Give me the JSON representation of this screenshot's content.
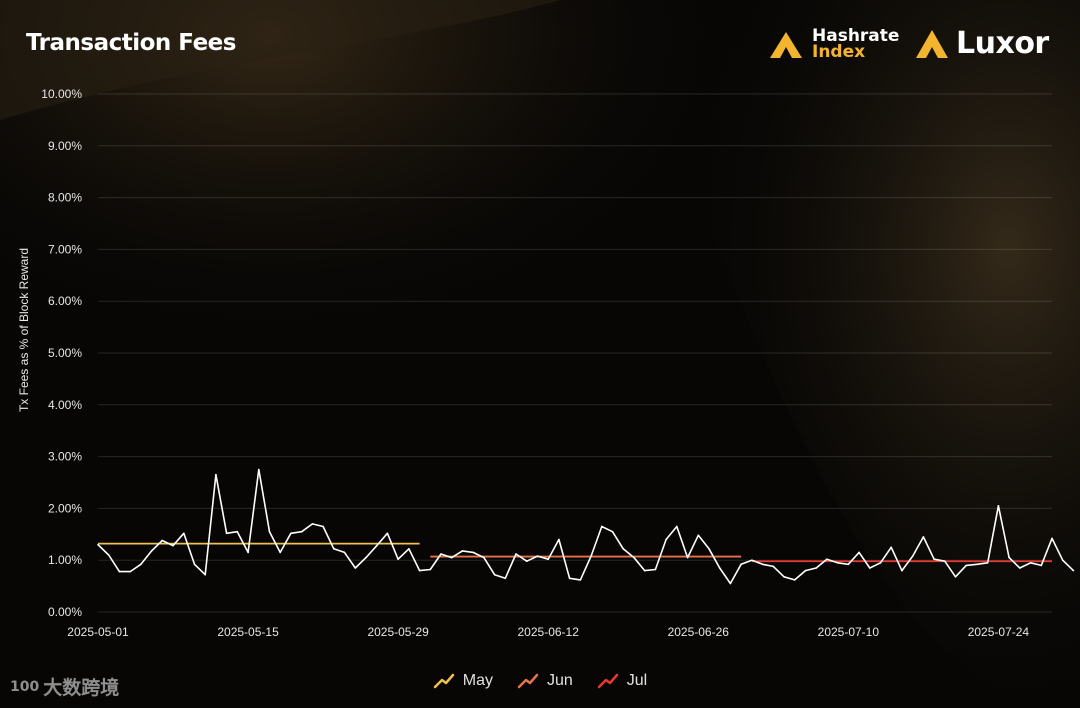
{
  "header": {
    "title": "Transaction Fees"
  },
  "logos": {
    "hashrate_line1": "Hashrate",
    "hashrate_line2": "Index",
    "luxor": "Luxor"
  },
  "watermark": {
    "text": "大数跨境",
    "mark": "100"
  },
  "colors": {
    "accent": "#f3b52f",
    "line": "#ffffff",
    "may": "#f0c050",
    "jun": "#e8704a",
    "jul": "#e63a2e"
  },
  "chart_data": {
    "type": "line",
    "title": "Transaction Fees",
    "xlabel": "",
    "ylabel": "Tx Fees as % of Block Reward",
    "ylim": [
      0,
      10
    ],
    "yticks": [
      "0.00%",
      "1.00%",
      "2.00%",
      "3.00%",
      "4.00%",
      "5.00%",
      "6.00%",
      "7.00%",
      "8.00%",
      "9.00%",
      "10.00%"
    ],
    "xticks": [
      "2025-05-01",
      "2025-05-15",
      "2025-05-29",
      "2025-06-12",
      "2025-06-26",
      "2025-07-10",
      "2025-07-24"
    ],
    "x_start": "2025-05-01",
    "x_end": "2025-07-29",
    "grid": true,
    "legend_position": "bottom-center",
    "series": [
      {
        "name": "Tx Fees",
        "values": [
          1.3,
          1.1,
          0.78,
          0.78,
          0.92,
          1.18,
          1.38,
          1.28,
          1.52,
          0.92,
          0.72,
          2.65,
          1.52,
          1.55,
          1.15,
          2.75,
          1.55,
          1.15,
          1.52,
          1.55,
          1.7,
          1.65,
          1.22,
          1.15,
          0.85,
          1.05,
          1.28,
          1.52,
          1.02,
          1.22,
          0.8,
          0.82,
          1.12,
          1.05,
          1.18,
          1.15,
          1.05,
          0.72,
          0.65,
          1.12,
          0.98,
          1.08,
          1.02,
          1.4,
          0.65,
          0.62,
          1.08,
          1.65,
          1.55,
          1.22,
          1.05,
          0.8,
          0.82,
          1.4,
          1.65,
          1.05,
          1.48,
          1.22,
          0.85,
          0.55,
          0.92,
          1.0,
          0.92,
          0.88,
          0.68,
          0.62,
          0.8,
          0.85,
          1.02,
          0.95,
          0.92,
          1.15,
          0.85,
          0.95,
          1.25,
          0.8,
          1.08,
          1.45,
          1.02,
          0.98,
          0.68,
          0.9,
          0.92,
          0.95,
          2.05,
          1.05,
          0.85,
          0.95,
          0.9,
          1.42,
          1.0,
          0.8
        ]
      }
    ],
    "averages": [
      {
        "name": "May",
        "value": 1.32,
        "start": "2025-05-01",
        "end": "2025-05-31",
        "color": "#f0c050"
      },
      {
        "name": "Jun",
        "value": 1.07,
        "start": "2025-06-01",
        "end": "2025-06-30",
        "color": "#e8704a"
      },
      {
        "name": "Jul",
        "value": 0.98,
        "start": "2025-07-01",
        "end": "2025-07-29",
        "color": "#e63a2e"
      }
    ]
  }
}
